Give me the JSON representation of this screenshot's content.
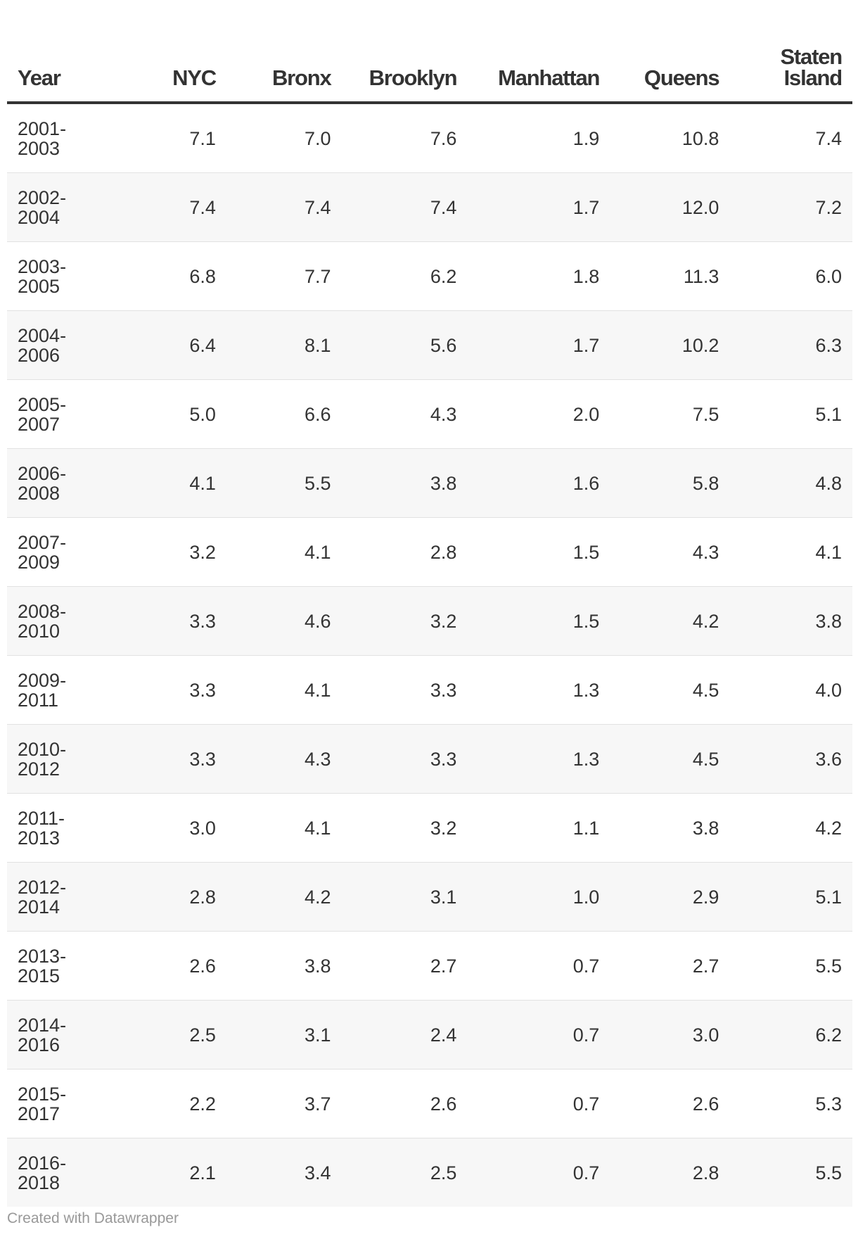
{
  "table": {
    "columns": [
      "Year",
      "NYC",
      "Bronx",
      "Brooklyn",
      "Manhattan",
      "Queens",
      "Staten Island"
    ],
    "rows": [
      [
        "2001-\n2003",
        "7.1",
        "7.0",
        "7.6",
        "1.9",
        "10.8",
        "7.4"
      ],
      [
        "2002-\n2004",
        "7.4",
        "7.4",
        "7.4",
        "1.7",
        "12.0",
        "7.2"
      ],
      [
        "2003-\n2005",
        "6.8",
        "7.7",
        "6.2",
        "1.8",
        "11.3",
        "6.0"
      ],
      [
        "2004-\n2006",
        "6.4",
        "8.1",
        "5.6",
        "1.7",
        "10.2",
        "6.3"
      ],
      [
        "2005-\n2007",
        "5.0",
        "6.6",
        "4.3",
        "2.0",
        "7.5",
        "5.1"
      ],
      [
        "2006-\n2008",
        "4.1",
        "5.5",
        "3.8",
        "1.6",
        "5.8",
        "4.8"
      ],
      [
        "2007-\n2009",
        "3.2",
        "4.1",
        "2.8",
        "1.5",
        "4.3",
        "4.1"
      ],
      [
        "2008-\n2010",
        "3.3",
        "4.6",
        "3.2",
        "1.5",
        "4.2",
        "3.8"
      ],
      [
        "2009-\n2011",
        "3.3",
        "4.1",
        "3.3",
        "1.3",
        "4.5",
        "4.0"
      ],
      [
        "2010-\n2012",
        "3.3",
        "4.3",
        "3.3",
        "1.3",
        "4.5",
        "3.6"
      ],
      [
        "2011-\n2013",
        "3.0",
        "4.1",
        "3.2",
        "1.1",
        "3.8",
        "4.2"
      ],
      [
        "2012-\n2014",
        "2.8",
        "4.2",
        "3.1",
        "1.0",
        "2.9",
        "5.1"
      ],
      [
        "2013-\n2015",
        "2.6",
        "3.8",
        "2.7",
        "0.7",
        "2.7",
        "5.5"
      ],
      [
        "2014-\n2016",
        "2.5",
        "3.1",
        "2.4",
        "0.7",
        "3.0",
        "6.2"
      ],
      [
        "2015-\n2017",
        "2.2",
        "3.7",
        "2.6",
        "0.7",
        "2.6",
        "5.3"
      ],
      [
        "2016-\n2018",
        "2.1",
        "3.4",
        "2.5",
        "0.7",
        "2.8",
        "5.5"
      ]
    ]
  },
  "chart_data": {
    "type": "table",
    "columns": [
      "Year",
      "NYC",
      "Bronx",
      "Brooklyn",
      "Manhattan",
      "Queens",
      "Staten Island"
    ],
    "categories": [
      "2001-2003",
      "2002-2004",
      "2003-2005",
      "2004-2006",
      "2005-2007",
      "2006-2008",
      "2007-2009",
      "2008-2010",
      "2009-2011",
      "2010-2012",
      "2011-2013",
      "2012-2014",
      "2013-2015",
      "2014-2016",
      "2015-2017",
      "2016-2018"
    ],
    "series": [
      {
        "name": "NYC",
        "values": [
          7.1,
          7.4,
          6.8,
          6.4,
          5.0,
          4.1,
          3.2,
          3.3,
          3.3,
          3.3,
          3.0,
          2.8,
          2.6,
          2.5,
          2.2,
          2.1
        ]
      },
      {
        "name": "Bronx",
        "values": [
          7.0,
          7.4,
          7.7,
          8.1,
          6.6,
          5.5,
          4.1,
          4.6,
          4.1,
          4.3,
          4.1,
          4.2,
          3.8,
          3.1,
          3.7,
          3.4
        ]
      },
      {
        "name": "Brooklyn",
        "values": [
          7.6,
          7.4,
          6.2,
          5.6,
          4.3,
          3.8,
          2.8,
          3.2,
          3.3,
          3.3,
          3.2,
          3.1,
          2.7,
          2.4,
          2.6,
          2.5
        ]
      },
      {
        "name": "Manhattan",
        "values": [
          1.9,
          1.7,
          1.8,
          1.7,
          2.0,
          1.6,
          1.5,
          1.5,
          1.3,
          1.3,
          1.1,
          1.0,
          0.7,
          0.7,
          0.7,
          0.7
        ]
      },
      {
        "name": "Queens",
        "values": [
          10.8,
          12.0,
          11.3,
          10.2,
          7.5,
          5.8,
          4.3,
          4.2,
          4.5,
          4.5,
          3.8,
          2.9,
          2.7,
          3.0,
          2.6,
          2.8
        ]
      },
      {
        "name": "Staten Island",
        "values": [
          7.4,
          7.2,
          6.0,
          6.3,
          5.1,
          4.8,
          4.1,
          3.8,
          4.0,
          3.6,
          4.2,
          5.1,
          5.5,
          6.2,
          5.3,
          5.5
        ]
      }
    ]
  },
  "footer": {
    "credit": "Created with Datawrapper"
  }
}
